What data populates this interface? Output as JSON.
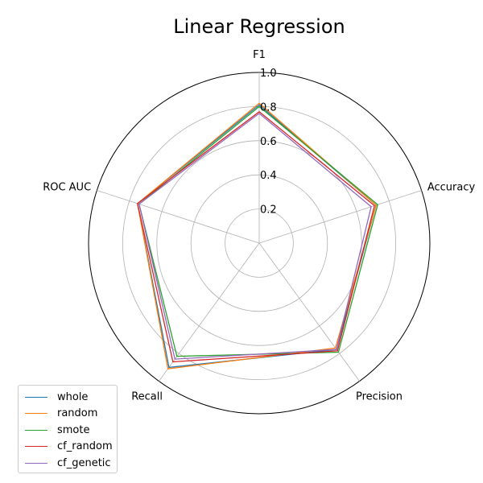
{
  "chart_data": {
    "type": "radar",
    "title": "Linear Regression",
    "axes": [
      "F1",
      "Accuracy",
      "Precision",
      "Recall",
      "ROC AUC"
    ],
    "rlim": [
      0,
      1.0
    ],
    "rticks": [
      "0.2",
      "0.4",
      "0.6",
      "0.8",
      "1.0"
    ],
    "rtick_values": [
      0.2,
      0.4,
      0.6,
      0.8,
      1.0
    ],
    "grid": true,
    "legend_position": "bottom-left",
    "series": [
      {
        "name": "whole",
        "color": "#1f77b4",
        "values": [
          0.81,
          0.72,
          0.77,
          0.9,
          0.75
        ]
      },
      {
        "name": "random",
        "color": "#ff7f0e",
        "values": [
          0.82,
          0.72,
          0.76,
          0.91,
          0.75
        ]
      },
      {
        "name": "smote",
        "color": "#2ca02c",
        "values": [
          0.8,
          0.73,
          0.79,
          0.82,
          0.74
        ]
      },
      {
        "name": "cf_random",
        "color": "#d62728",
        "values": [
          0.77,
          0.71,
          0.78,
          0.86,
          0.75
        ]
      },
      {
        "name": "cf_genetic",
        "color": "#9467bd",
        "values": [
          0.76,
          0.69,
          0.77,
          0.84,
          0.74
        ]
      }
    ]
  }
}
